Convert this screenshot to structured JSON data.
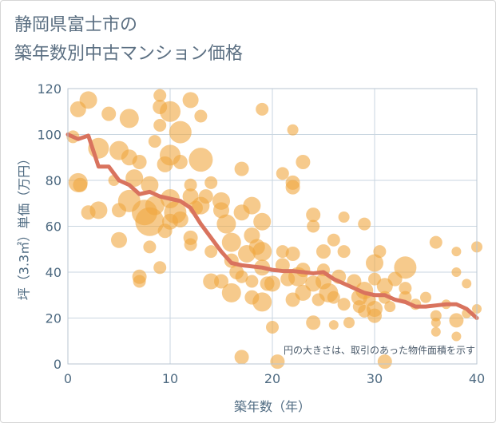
{
  "title_line1": "静岡県富士市の",
  "title_line2": "築年数別中古マンション価格",
  "colors": {
    "bubble": "#f0a640",
    "line": "#d9735e",
    "grid": "#c9d6e0",
    "plot_border": "#b8c6d2",
    "text": "#4f6b82"
  },
  "chart_data": {
    "type": "scatter",
    "xlabel": "築年数（年）",
    "ylabel": "坪（3.3㎡）単価（万円）",
    "xlim": [
      0,
      40
    ],
    "ylim": [
      0,
      120
    ],
    "xticks": [
      "0",
      "10",
      "20",
      "30",
      "40"
    ],
    "yticks": [
      "0",
      "20",
      "40",
      "60",
      "80",
      "100",
      "120"
    ],
    "grid": true,
    "annotation": "円の大きさは、取引のあった物件面積を示す",
    "trend_line": {
      "x": [
        0,
        1,
        2,
        3,
        4,
        5,
        6,
        7,
        8,
        9,
        10,
        11,
        12,
        13,
        14,
        15,
        16,
        17,
        18,
        19,
        20,
        21,
        22,
        23,
        24,
        25,
        26,
        27,
        28,
        29,
        30,
        31,
        32,
        33,
        34,
        35,
        36,
        37,
        38,
        39,
        40
      ],
      "y": [
        100,
        98,
        99.5,
        86,
        86,
        80,
        78,
        74,
        75,
        73,
        72,
        71,
        68,
        61,
        55,
        49,
        44,
        43,
        42.5,
        42,
        41,
        40.5,
        40.5,
        40,
        39.5,
        40,
        37,
        35,
        33,
        31,
        30,
        30,
        28,
        27,
        25,
        25,
        25.5,
        26,
        26,
        24,
        20
      ]
    },
    "bubbles": [
      {
        "x": 0.5,
        "y": 99,
        "s": 8
      },
      {
        "x": 1,
        "y": 111,
        "s": 10
      },
      {
        "x": 1,
        "y": 79,
        "s": 12
      },
      {
        "x": 1.2,
        "y": 78,
        "s": 9
      },
      {
        "x": 2,
        "y": 115,
        "s": 11
      },
      {
        "x": 2,
        "y": 66,
        "s": 9
      },
      {
        "x": 3,
        "y": 94,
        "s": 13
      },
      {
        "x": 3,
        "y": 67,
        "s": 11
      },
      {
        "x": 4,
        "y": 109,
        "s": 9
      },
      {
        "x": 4.5,
        "y": 80,
        "s": 7
      },
      {
        "x": 5,
        "y": 93,
        "s": 12
      },
      {
        "x": 5,
        "y": 67,
        "s": 9
      },
      {
        "x": 5,
        "y": 54,
        "s": 10
      },
      {
        "x": 6,
        "y": 107,
        "s": 12
      },
      {
        "x": 6,
        "y": 90,
        "s": 10
      },
      {
        "x": 6,
        "y": 71,
        "s": 14
      },
      {
        "x": 6.5,
        "y": 81,
        "s": 11
      },
      {
        "x": 7,
        "y": 88,
        "s": 9
      },
      {
        "x": 7,
        "y": 38,
        "s": 9
      },
      {
        "x": 7,
        "y": 36,
        "s": 8
      },
      {
        "x": 7.5,
        "y": 66,
        "s": 16
      },
      {
        "x": 8,
        "y": 78,
        "s": 11
      },
      {
        "x": 8,
        "y": 62,
        "s": 18
      },
      {
        "x": 8,
        "y": 51,
        "s": 8
      },
      {
        "x": 8.5,
        "y": 69,
        "s": 12
      },
      {
        "x": 8.5,
        "y": 97,
        "s": 8
      },
      {
        "x": 9,
        "y": 117,
        "s": 8
      },
      {
        "x": 9,
        "y": 112,
        "s": 9
      },
      {
        "x": 9,
        "y": 104,
        "s": 8
      },
      {
        "x": 9,
        "y": 42,
        "s": 8
      },
      {
        "x": 9.5,
        "y": 87,
        "s": 10
      },
      {
        "x": 9.5,
        "y": 58,
        "s": 9
      },
      {
        "x": 10,
        "y": 110,
        "s": 13
      },
      {
        "x": 10,
        "y": 91,
        "s": 13
      },
      {
        "x": 10,
        "y": 72,
        "s": 12
      },
      {
        "x": 10,
        "y": 62,
        "s": 10
      },
      {
        "x": 10.5,
        "y": 66,
        "s": 14
      },
      {
        "x": 11,
        "y": 101,
        "s": 14
      },
      {
        "x": 11,
        "y": 88,
        "s": 9
      },
      {
        "x": 11,
        "y": 63,
        "s": 10
      },
      {
        "x": 12,
        "y": 115,
        "s": 10
      },
      {
        "x": 12,
        "y": 78,
        "s": 8
      },
      {
        "x": 12,
        "y": 73,
        "s": 10
      },
      {
        "x": 12,
        "y": 55,
        "s": 9
      },
      {
        "x": 12,
        "y": 52,
        "s": 8
      },
      {
        "x": 12.5,
        "y": 68,
        "s": 9
      },
      {
        "x": 13,
        "y": 108,
        "s": 8
      },
      {
        "x": 13,
        "y": 89,
        "s": 15
      },
      {
        "x": 13,
        "y": 69,
        "s": 11
      },
      {
        "x": 13.5,
        "y": 73,
        "s": 9
      },
      {
        "x": 14,
        "y": 79,
        "s": 8
      },
      {
        "x": 14,
        "y": 49,
        "s": 8
      },
      {
        "x": 14,
        "y": 36,
        "s": 10
      },
      {
        "x": 15,
        "y": 71,
        "s": 11
      },
      {
        "x": 15,
        "y": 67,
        "s": 10
      },
      {
        "x": 15,
        "y": 36,
        "s": 9
      },
      {
        "x": 15.5,
        "y": 61,
        "s": 12
      },
      {
        "x": 16,
        "y": 53,
        "s": 12
      },
      {
        "x": 16,
        "y": 45,
        "s": 9
      },
      {
        "x": 16,
        "y": 31,
        "s": 12
      },
      {
        "x": 16.5,
        "y": 40,
        "s": 9
      },
      {
        "x": 17,
        "y": 85,
        "s": 9
      },
      {
        "x": 17,
        "y": 66,
        "s": 10
      },
      {
        "x": 17,
        "y": 38,
        "s": 8
      },
      {
        "x": 17,
        "y": 3,
        "s": 9
      },
      {
        "x": 17.5,
        "y": 48,
        "s": 11
      },
      {
        "x": 18,
        "y": 69,
        "s": 11
      },
      {
        "x": 18,
        "y": 56,
        "s": 10
      },
      {
        "x": 18,
        "y": 36,
        "s": 8
      },
      {
        "x": 18,
        "y": 29,
        "s": 9
      },
      {
        "x": 18.5,
        "y": 51,
        "s": 10
      },
      {
        "x": 19,
        "y": 111,
        "s": 8
      },
      {
        "x": 19,
        "y": 62,
        "s": 11
      },
      {
        "x": 19,
        "y": 49,
        "s": 12
      },
      {
        "x": 19,
        "y": 42,
        "s": 10
      },
      {
        "x": 19,
        "y": 27,
        "s": 12
      },
      {
        "x": 19.5,
        "y": 35,
        "s": 9
      },
      {
        "x": 20,
        "y": 35,
        "s": 10
      },
      {
        "x": 20,
        "y": 16,
        "s": 8
      },
      {
        "x": 20.5,
        "y": 1,
        "s": 9
      },
      {
        "x": 21,
        "y": 83,
        "s": 8
      },
      {
        "x": 21,
        "y": 49,
        "s": 8
      },
      {
        "x": 21,
        "y": 43,
        "s": 9
      },
      {
        "x": 21.5,
        "y": 37,
        "s": 9
      },
      {
        "x": 22,
        "y": 102,
        "s": 7
      },
      {
        "x": 22,
        "y": 79,
        "s": 9
      },
      {
        "x": 22,
        "y": 77,
        "s": 9
      },
      {
        "x": 22,
        "y": 48,
        "s": 9
      },
      {
        "x": 22,
        "y": 28,
        "s": 9
      },
      {
        "x": 22.5,
        "y": 38,
        "s": 12
      },
      {
        "x": 23,
        "y": 88,
        "s": 9
      },
      {
        "x": 23,
        "y": 41,
        "s": 9
      },
      {
        "x": 23,
        "y": 31,
        "s": 10
      },
      {
        "x": 24,
        "y": 65,
        "s": 9
      },
      {
        "x": 24,
        "y": 60,
        "s": 8
      },
      {
        "x": 24,
        "y": 35,
        "s": 10
      },
      {
        "x": 24,
        "y": 18,
        "s": 9
      },
      {
        "x": 24.5,
        "y": 28,
        "s": 8
      },
      {
        "x": 25,
        "y": 49,
        "s": 9
      },
      {
        "x": 25,
        "y": 41,
        "s": 8
      },
      {
        "x": 25,
        "y": 36,
        "s": 10
      },
      {
        "x": 25.5,
        "y": 31,
        "s": 12
      },
      {
        "x": 26,
        "y": 54,
        "s": 8
      },
      {
        "x": 26,
        "y": 29,
        "s": 8
      },
      {
        "x": 26,
        "y": 17,
        "s": 6
      },
      {
        "x": 26.5,
        "y": 38,
        "s": 9
      },
      {
        "x": 27,
        "y": 64,
        "s": 7
      },
      {
        "x": 27,
        "y": 49,
        "s": 8
      },
      {
        "x": 27,
        "y": 26,
        "s": 8
      },
      {
        "x": 27.5,
        "y": 18,
        "s": 7
      },
      {
        "x": 28,
        "y": 36,
        "s": 9
      },
      {
        "x": 28.5,
        "y": 29,
        "s": 10
      },
      {
        "x": 28.5,
        "y": 25,
        "s": 8
      },
      {
        "x": 29,
        "y": 61,
        "s": 8
      },
      {
        "x": 29,
        "y": 32,
        "s": 11
      },
      {
        "x": 29,
        "y": 23,
        "s": 8
      },
      {
        "x": 29.5,
        "y": 28,
        "s": 8
      },
      {
        "x": 30,
        "y": 44,
        "s": 11
      },
      {
        "x": 30,
        "y": 37,
        "s": 8
      },
      {
        "x": 30,
        "y": 24,
        "s": 10
      },
      {
        "x": 30,
        "y": 21,
        "s": 9
      },
      {
        "x": 30.5,
        "y": 49,
        "s": 8
      },
      {
        "x": 31,
        "y": 34,
        "s": 10
      },
      {
        "x": 31,
        "y": 29,
        "s": 8
      },
      {
        "x": 31,
        "y": 1,
        "s": 9
      },
      {
        "x": 31.5,
        "y": 25,
        "s": 7
      },
      {
        "x": 32,
        "y": 37,
        "s": 9
      },
      {
        "x": 33,
        "y": 42,
        "s": 14
      },
      {
        "x": 33,
        "y": 33,
        "s": 8
      },
      {
        "x": 33,
        "y": 29,
        "s": 8
      },
      {
        "x": 34,
        "y": 26,
        "s": 7
      },
      {
        "x": 35,
        "y": 29,
        "s": 7
      },
      {
        "x": 36,
        "y": 53,
        "s": 8
      },
      {
        "x": 36,
        "y": 21,
        "s": 7
      },
      {
        "x": 36,
        "y": 18,
        "s": 6
      },
      {
        "x": 36,
        "y": 14,
        "s": 6
      },
      {
        "x": 37,
        "y": 26,
        "s": 6
      },
      {
        "x": 38,
        "y": 49,
        "s": 6
      },
      {
        "x": 38,
        "y": 40,
        "s": 6
      },
      {
        "x": 38,
        "y": 19,
        "s": 9
      },
      {
        "x": 38,
        "y": 12,
        "s": 6
      },
      {
        "x": 39,
        "y": 35,
        "s": 6
      },
      {
        "x": 39,
        "y": 22,
        "s": 6
      },
      {
        "x": 40,
        "y": 51,
        "s": 7
      },
      {
        "x": 40,
        "y": 24,
        "s": 6
      }
    ]
  }
}
